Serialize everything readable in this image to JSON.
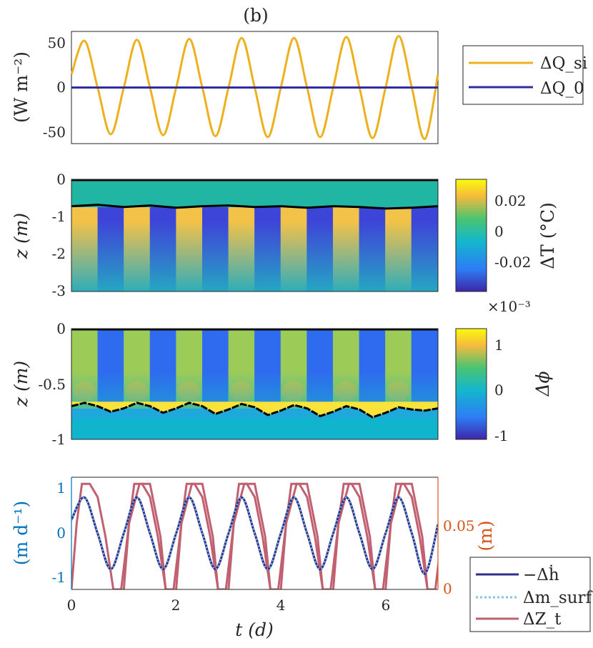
{
  "chart_data": [
    {
      "type": "line",
      "panel_label": "(b)",
      "ylabel": "(W m⁻²)",
      "xlim": [
        0,
        7
      ],
      "ylim": [
        -60,
        60
      ],
      "yticks": [
        "50",
        "0",
        "-50"
      ],
      "legend_position": "right",
      "series": [
        {
          "name": "ΔQ_si",
          "color": "#EDB120",
          "x": [
            0,
            0.25,
            0.5,
            0.75,
            1,
            1.25,
            1.5,
            1.75,
            2,
            2.25,
            2.5,
            2.75,
            3,
            3.25,
            3.5,
            3.75,
            4,
            4.25,
            4.5,
            4.75,
            5,
            5.25,
            5.5,
            5.75,
            6,
            6.25,
            6.5,
            6.75,
            7
          ],
          "y": [
            14,
            50,
            0,
            -50,
            0,
            51,
            0,
            -51,
            0,
            52,
            0,
            -52,
            0,
            53,
            0,
            -53,
            0,
            53,
            0,
            -53,
            0,
            54,
            0,
            -54,
            0,
            55,
            0,
            -55,
            14
          ]
        },
        {
          "name": "ΔQ_0",
          "color": "#2E2EA0",
          "x": [
            0,
            7
          ],
          "y": [
            0,
            0
          ]
        }
      ]
    },
    {
      "type": "heatmap",
      "ylabel": "z (m)",
      "ylim": [
        -3,
        0
      ],
      "xlim": [
        0,
        7
      ],
      "yticks": [
        "0",
        "-1",
        "-2",
        "-3"
      ],
      "colorbar_label": "ΔT (°C)",
      "colorbar_ticks": [
        "0.02",
        "0",
        "-0.02"
      ],
      "clim": [
        -0.03,
        0.03
      ],
      "ice_base_depth": {
        "x": [
          0,
          0.5,
          1,
          1.5,
          2,
          2.5,
          3,
          3.5,
          4,
          4.5,
          5,
          5.5,
          6,
          6.5,
          7
        ],
        "z": [
          -0.72,
          -0.68,
          -0.74,
          -0.7,
          -0.76,
          -0.72,
          -0.7,
          -0.74,
          -0.72,
          -0.76,
          -0.72,
          -0.74,
          -0.78,
          -0.76,
          -0.72
        ]
      }
    },
    {
      "type": "heatmap",
      "ylabel": "z (m)",
      "ylim": [
        -1,
        0
      ],
      "xlim": [
        0,
        7
      ],
      "yticks": [
        "0",
        "-0.5",
        "-1"
      ],
      "colorbar_label": "Δϕ",
      "colorbar_ticks": [
        "1",
        "0",
        "-1"
      ],
      "colorbar_multiplier": "×10⁻³",
      "clim": [
        -1.1,
        1.4
      ],
      "ice_base_depth": {
        "x": [
          0,
          0.25,
          0.5,
          0.75,
          1,
          1.25,
          1.5,
          1.75,
          2,
          2.25,
          2.5,
          2.75,
          3,
          3.25,
          3.5,
          3.75,
          4,
          4.25,
          4.5,
          4.75,
          5,
          5.25,
          5.5,
          5.75,
          6,
          6.25,
          6.5,
          6.75,
          7
        ],
        "z": [
          -0.7,
          -0.67,
          -0.7,
          -0.75,
          -0.72,
          -0.67,
          -0.7,
          -0.76,
          -0.72,
          -0.67,
          -0.7,
          -0.77,
          -0.73,
          -0.68,
          -0.71,
          -0.78,
          -0.74,
          -0.69,
          -0.72,
          -0.79,
          -0.75,
          -0.7,
          -0.73,
          -0.8,
          -0.76,
          -0.71,
          -0.73,
          -0.74,
          -0.72
        ]
      }
    },
    {
      "type": "line",
      "xlabel": "t (d)",
      "xlim": [
        0,
        7
      ],
      "xticks": [
        "0",
        "2",
        "4",
        "6"
      ],
      "ylabel_left": "(m d⁻¹)",
      "ylim_left": [
        -1.25,
        1.25
      ],
      "yticks_left": [
        "1",
        "0",
        "-1"
      ],
      "ylabel_right": "(m)",
      "ylim_right": [
        0,
        0.085
      ],
      "yticks_right": [
        "0.05",
        "0"
      ],
      "legend_position": "bottom-right",
      "series": [
        {
          "name": "−Δḣ",
          "color": "#2E2E8C",
          "axis": "left",
          "x": [
            0,
            0.25,
            0.5,
            0.75,
            1,
            1.25,
            1.5,
            1.75,
            2,
            2.25,
            2.5,
            2.75,
            3,
            3.25,
            3.5,
            3.75,
            4,
            4.25,
            4.5,
            4.75,
            5,
            5.25,
            5.5,
            5.75,
            6,
            6.25,
            6.5,
            6.75,
            7
          ],
          "y": [
            0.3,
            0.8,
            0,
            -0.8,
            0,
            0.8,
            0,
            -0.8,
            0,
            0.8,
            0,
            -0.8,
            0,
            0.8,
            0,
            -0.8,
            0,
            0.8,
            0,
            -0.8,
            0,
            0.8,
            0,
            -0.8,
            0,
            0.8,
            0,
            -0.9,
            0.2
          ]
        },
        {
          "name": "Δm_surf",
          "color": "#7EC8E8",
          "axis": "left",
          "style": "dotted",
          "x": [
            0,
            0.25,
            0.5,
            0.75,
            1,
            1.25,
            1.5,
            1.75,
            2,
            2.25,
            2.5,
            2.75,
            3,
            3.25,
            3.5,
            3.75,
            4,
            4.25,
            4.5,
            4.75,
            5,
            5.25,
            5.5,
            5.75,
            6,
            6.25,
            6.5,
            6.75,
            7
          ],
          "y": [
            0.3,
            0.8,
            0,
            -0.8,
            0,
            0.8,
            0,
            -0.8,
            0,
            0.8,
            0,
            -0.8,
            0,
            0.8,
            0,
            -0.8,
            0,
            0.8,
            0,
            -0.8,
            0,
            0.8,
            0,
            -0.8,
            0,
            0.8,
            0,
            -0.9,
            0.2
          ]
        },
        {
          "name": "ΔZ_t",
          "color": "#C06070",
          "axis": "right",
          "x": [
            0,
            0.1,
            0.2,
            0.35,
            0.5,
            0.65,
            0.8,
            0.95,
            1.1,
            1.3,
            1.5,
            1.7,
            1.8
          ],
          "y": [
            0,
            0.05,
            0.08,
            0.08,
            0.07,
            0.04,
            0.0,
            0.0,
            0.05,
            0.08,
            0.08,
            0.04,
            0.0
          ]
        }
      ]
    }
  ]
}
